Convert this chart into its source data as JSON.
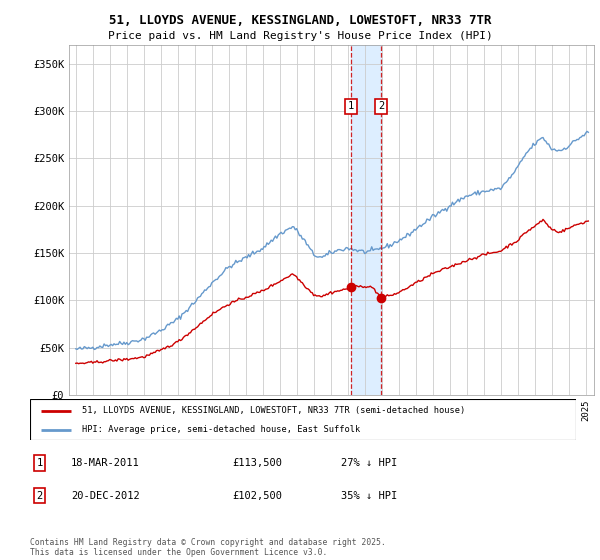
{
  "title_line1": "51, LLOYDS AVENUE, KESSINGLAND, LOWESTOFT, NR33 7TR",
  "title_line2": "Price paid vs. HM Land Registry's House Price Index (HPI)",
  "legend_red": "51, LLOYDS AVENUE, KESSINGLAND, LOWESTOFT, NR33 7TR (semi-detached house)",
  "legend_blue": "HPI: Average price, semi-detached house, East Suffolk",
  "annotation1_date": "18-MAR-2011",
  "annotation1_price": "£113,500",
  "annotation1_hpi": "27% ↓ HPI",
  "annotation2_date": "20-DEC-2012",
  "annotation2_price": "£102,500",
  "annotation2_hpi": "35% ↓ HPI",
  "copyright_text": "Contains HM Land Registry data © Crown copyright and database right 2025.\nThis data is licensed under the Open Government Licence v3.0.",
  "sale1_year": 2011.21,
  "sale1_value": 113500,
  "sale2_year": 2012.97,
  "sale2_value": 102500,
  "red_color": "#cc0000",
  "blue_color": "#6699cc",
  "shading_color": "#ddeeff",
  "dashed_color": "#cc0000",
  "background_color": "#ffffff",
  "grid_color": "#cccccc",
  "ylim": [
    0,
    370000
  ],
  "ytick_vals": [
    0,
    50000,
    100000,
    150000,
    200000,
    250000,
    300000,
    350000
  ],
  "ytick_labels": [
    "£0",
    "£50K",
    "£100K",
    "£150K",
    "£200K",
    "£250K",
    "£300K",
    "£350K"
  ]
}
